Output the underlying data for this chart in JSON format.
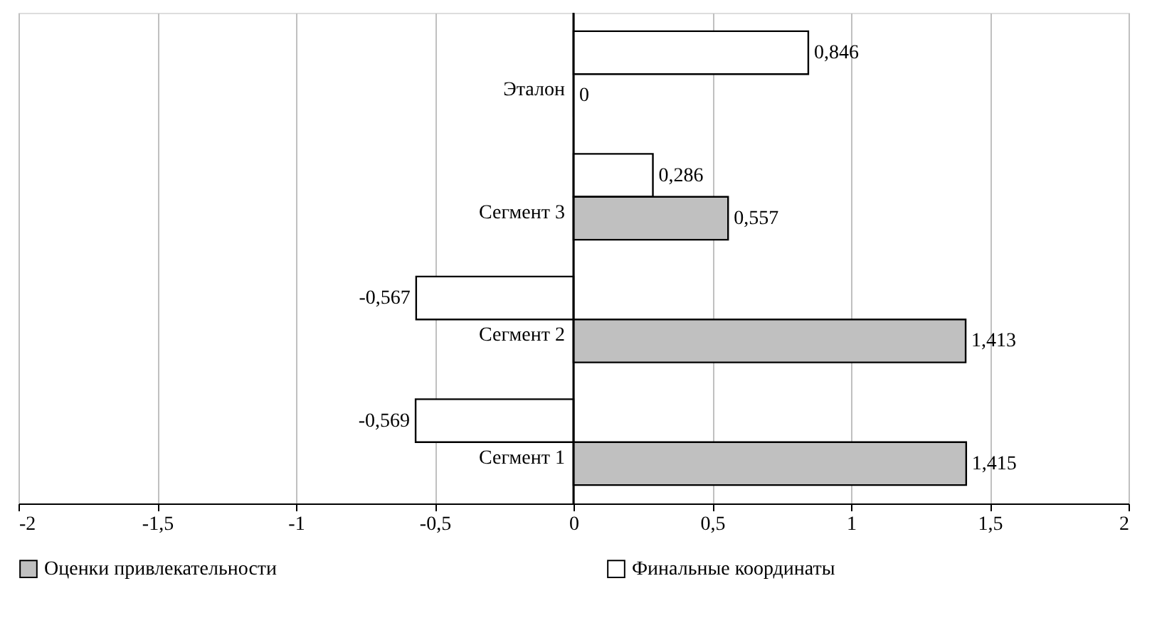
{
  "chart_data": {
    "type": "bar",
    "orientation": "horizontal",
    "categories": [
      "Эталон",
      "Сегмент 3",
      "Сегмент 2",
      "Сегмент 1"
    ],
    "series": [
      {
        "name": "Финальные координаты",
        "color": "#ffffff",
        "values": [
          0.846,
          0.286,
          -0.567,
          -0.569
        ],
        "value_labels": [
          "0,846",
          "0,286",
          "-0,567",
          "-0,569"
        ]
      },
      {
        "name": "Оценки привлекательности",
        "color": "#c0c0c0",
        "values": [
          0,
          0.557,
          1.413,
          1.415
        ],
        "value_labels": [
          "0",
          "0,557",
          "1,413",
          "1,415"
        ]
      }
    ],
    "xlim": [
      -2,
      2
    ],
    "xticks": [
      {
        "value": -2,
        "label": "-2"
      },
      {
        "value": -1.5,
        "label": "-1,5"
      },
      {
        "value": -1,
        "label": "-1"
      },
      {
        "value": -0.5,
        "label": "-0,5"
      },
      {
        "value": 0,
        "label": "0"
      },
      {
        "value": 0.5,
        "label": "0,5"
      },
      {
        "value": 1,
        "label": "1"
      },
      {
        "value": 1.5,
        "label": "1,5"
      },
      {
        "value": 2,
        "label": "2"
      }
    ],
    "grid": "x",
    "legend": "bottom"
  }
}
